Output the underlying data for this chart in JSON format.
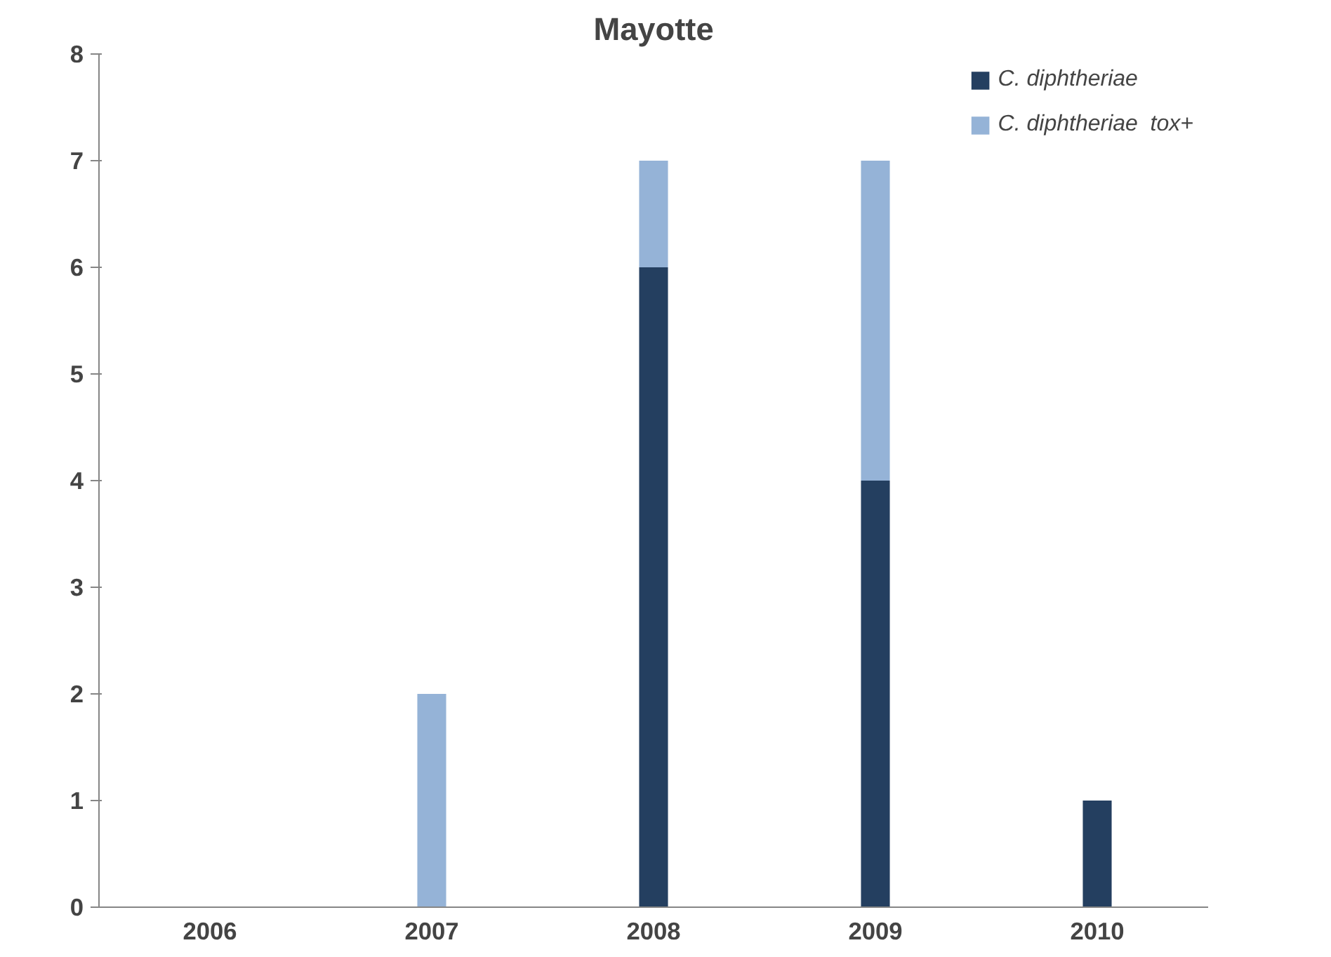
{
  "chart_data": {
    "type": "bar",
    "title": "Mayotte",
    "categories": [
      "2006",
      "2007",
      "2008",
      "2009",
      "2010"
    ],
    "stacked": true,
    "series": [
      {
        "name": "C. diphtheriae",
        "color": "#243f60",
        "values": [
          0,
          0,
          6,
          4,
          1
        ]
      },
      {
        "name": "C. diphtheriae  tox+",
        "color": "#95b3d7",
        "values": [
          0,
          2,
          1,
          3,
          0
        ]
      }
    ],
    "ylim": [
      0,
      8
    ],
    "yticks": [
      0,
      1,
      2,
      3,
      4,
      5,
      6,
      7,
      8
    ],
    "grid": false,
    "legend": "top right"
  }
}
